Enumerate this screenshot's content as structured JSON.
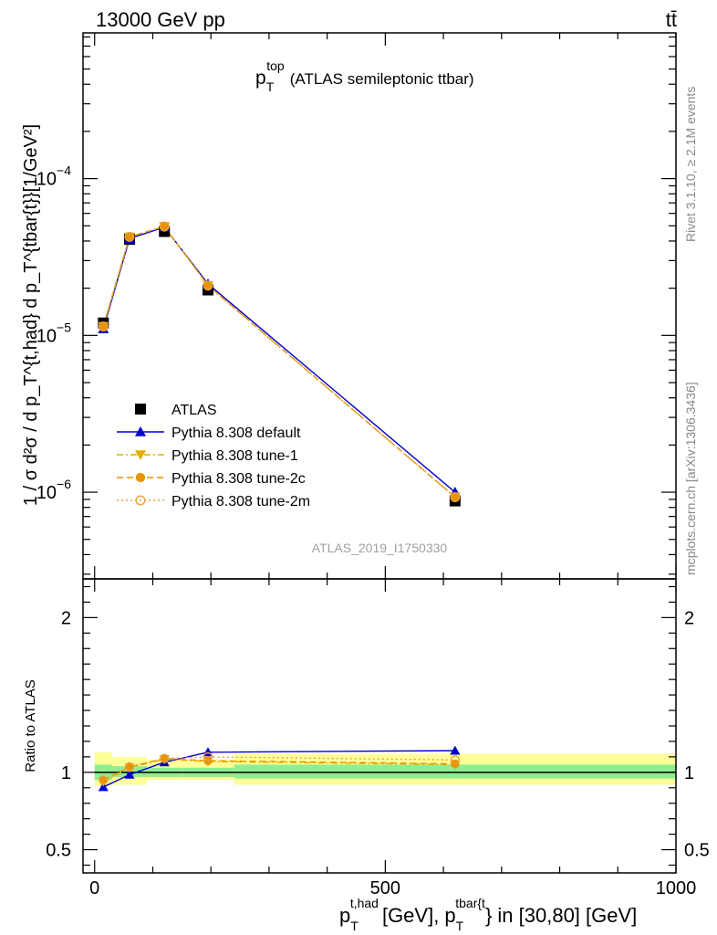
{
  "header": {
    "left": "13000 GeV pp",
    "right": "tt̄"
  },
  "chart_data": [
    {
      "type": "line",
      "panel": "main",
      "title": "p_T^top (ATLAS semileptonic ttbar)",
      "title_parts": {
        "p": "p",
        "sub": "T",
        "sup": "top",
        "rest": "(ATLAS semileptonic ttbar)"
      },
      "ylabel": "1 / σ d²σ / d p_T^{t,had} d p_T^{tbar{t}}[1/GeV²]",
      "yscale": "log",
      "ylim": [
        2.8e-07,
        0.00085
      ],
      "xlim": [
        -20,
        1000
      ],
      "yticks": [
        {
          "value": 1e-06,
          "base": "10",
          "exp": "−6"
        },
        {
          "value": 1e-05,
          "base": "10",
          "exp": "−5"
        },
        {
          "value": 0.0001,
          "base": "10",
          "exp": "−4"
        }
      ],
      "legend_position": "left, mid-panel",
      "watermark": "ATLAS_2019_I1750330",
      "series": [
        {
          "name": "ATLAS",
          "marker": "square",
          "color": "#000000",
          "x": [
            15,
            60,
            120,
            195,
            620
          ],
          "y": [
            1.2e-05,
            4.1e-05,
            4.6e-05,
            1.95e-05,
            8.8e-07
          ]
        },
        {
          "name": "Pythia 8.308 default",
          "marker": "triangle-up",
          "color": "#0000cc",
          "line": "solid",
          "x": [
            15,
            60,
            120,
            195,
            620
          ],
          "y": [
            1.1e-05,
            4.15e-05,
            4.9e-05,
            2.13e-05,
            1e-06
          ]
        },
        {
          "name": "Pythia 8.308 tune-1",
          "marker": "triangle-down",
          "color": "#e6ac00",
          "line": "dashdot",
          "x": [
            15,
            60,
            120,
            195,
            620
          ],
          "y": [
            1.14e-05,
            4.25e-05,
            4.95e-05,
            2.08e-05,
            9.3e-07
          ]
        },
        {
          "name": "Pythia 8.308 tune-2c",
          "marker": "circle",
          "color": "#e69500",
          "line": "dashed",
          "x": [
            15,
            60,
            120,
            195,
            620
          ],
          "y": [
            1.14e-05,
            4.25e-05,
            4.95e-05,
            2.08e-05,
            9.3e-07
          ]
        },
        {
          "name": "Pythia 8.308 tune-2m",
          "marker": "circle-open",
          "color": "#e6a040",
          "line": "dotted",
          "x": [
            15,
            60,
            120,
            195,
            620
          ],
          "y": [
            1.14e-05,
            4.25e-05,
            4.95e-05,
            2.08e-05,
            9.3e-07
          ]
        }
      ]
    },
    {
      "type": "line",
      "panel": "ratio",
      "ylabel": "Ratio to ATLAS",
      "ylim": [
        0.35,
        2.25
      ],
      "xlim": [
        -20,
        1000
      ],
      "yticks": [
        {
          "value": 0.5,
          "label": "0.5"
        },
        {
          "value": 1,
          "label": "1"
        },
        {
          "value": 2,
          "label": "2"
        }
      ],
      "xticks": [
        {
          "value": 0,
          "label": "0"
        },
        {
          "value": 500,
          "label": "500"
        },
        {
          "value": 1000,
          "label": "1000"
        }
      ],
      "xlabel": "p_T^{t,had} [GeV], p_T^{tbar{t}} in [30,80] [GeV]",
      "xlabel_parts": {
        "p": "p",
        "sub": "T",
        "sup1": "t,had",
        "mid": "[GeV], p",
        "sup2": "tbar{t",
        "tail": "} in [30,80] [GeV]"
      },
      "bands": [
        {
          "x0": 0,
          "x1": 30,
          "stat_lo": 0.95,
          "stat_hi": 1.05,
          "tot_lo": 0.91,
          "tot_hi": 1.13
        },
        {
          "x0": 30,
          "x1": 90,
          "stat_lo": 0.97,
          "stat_hi": 1.04,
          "tot_lo": 0.92,
          "tot_hi": 1.1
        },
        {
          "x0": 90,
          "x1": 150,
          "stat_lo": 0.97,
          "stat_hi": 1.03,
          "tot_lo": 0.95,
          "tot_hi": 1.08
        },
        {
          "x0": 150,
          "x1": 240,
          "stat_lo": 0.97,
          "stat_hi": 1.03,
          "tot_lo": 0.95,
          "tot_hi": 1.08
        },
        {
          "x0": 240,
          "x1": 1000,
          "stat_lo": 0.96,
          "stat_hi": 1.05,
          "tot_lo": 0.92,
          "tot_hi": 1.12
        }
      ],
      "colors": {
        "stat": "#90ee90",
        "total": "#ffff99"
      },
      "series": [
        {
          "name": "Pythia 8.308 default",
          "marker": "triangle-up",
          "color": "#0000cc",
          "line": "solid",
          "x": [
            15,
            60,
            120,
            195,
            620
          ],
          "y": [
            0.905,
            0.985,
            1.065,
            1.13,
            1.14
          ]
        },
        {
          "name": "Pythia 8.308 tune-1",
          "marker": "triangle-down",
          "color": "#e6ac00",
          "line": "dashdot",
          "x": [
            15,
            60,
            120,
            195,
            620
          ],
          "y": [
            0.94,
            1.03,
            1.085,
            1.07,
            1.05
          ]
        },
        {
          "name": "Pythia 8.308 tune-2c",
          "marker": "circle",
          "color": "#e69500",
          "line": "dashed",
          "x": [
            15,
            60,
            120,
            195,
            620
          ],
          "y": [
            0.95,
            1.035,
            1.09,
            1.075,
            1.055
          ]
        },
        {
          "name": "Pythia 8.308 tune-2m",
          "marker": "circle-open",
          "color": "#e6a040",
          "line": "dotted",
          "x": [
            15,
            60,
            120,
            195,
            620
          ],
          "y": [
            0.95,
            1.035,
            1.09,
            1.1,
            1.08
          ]
        }
      ]
    }
  ],
  "side_labels": {
    "top": "Rivet 3.1.10, ≥ 2.1M events",
    "bottom": "mcplots.cern.ch [arXiv:1306.3436]"
  }
}
